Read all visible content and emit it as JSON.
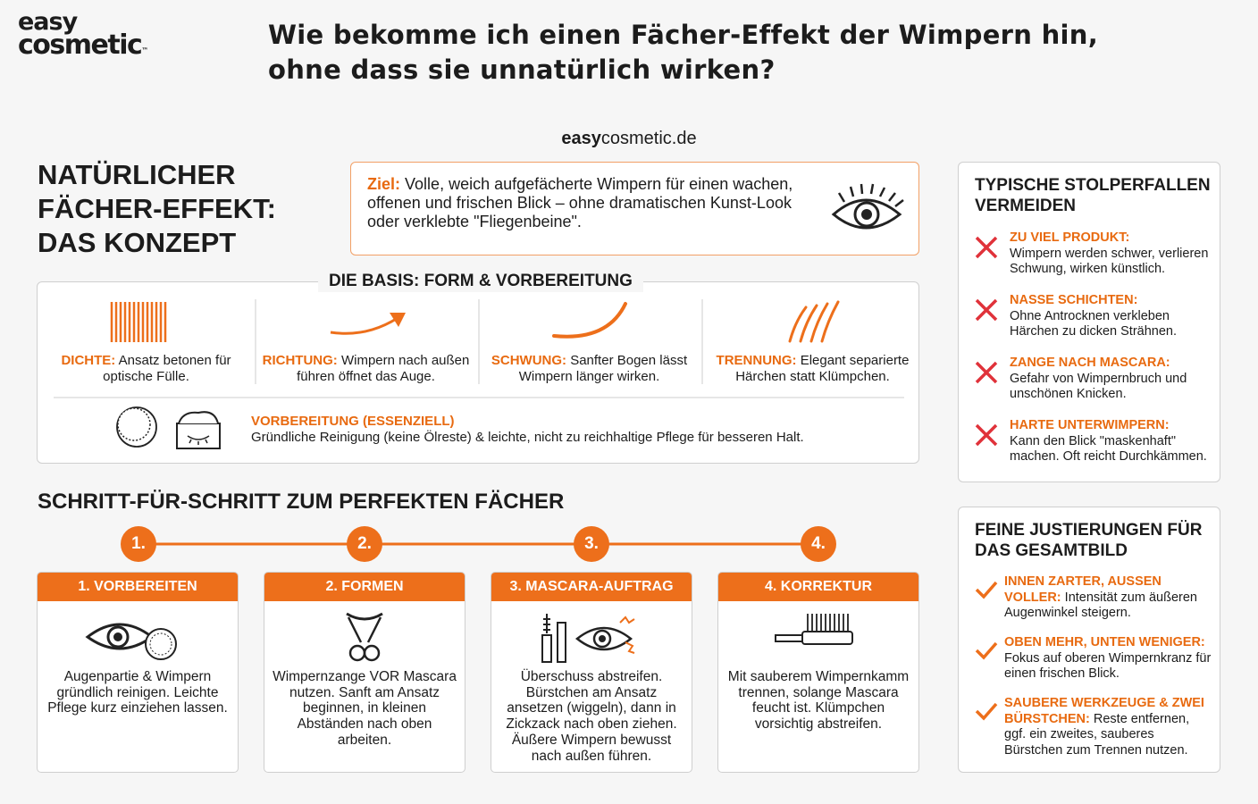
{
  "logo": {
    "line1": "easy",
    "line2": "cosmetic",
    "tm": "™"
  },
  "title": "Wie bekomme ich einen Fächer-Effekt der Wimpern hin, ohne dass sie unnatürlich wirken?",
  "site": {
    "bold": "easy",
    "rest": "cosmetic.de"
  },
  "concept": {
    "heading": "NATÜRLICHER FÄCHER-EFFEKT: DAS KONZEPT",
    "goal": {
      "label": "Ziel:",
      "text": "Volle, weich aufgefächerte Wimpern für einen wachen, offenen und frischen Blick – ohne dramatischen Kunst-Look oder verklebte \"Fliegenbeine\"."
    }
  },
  "basis": {
    "title": "DIE BASIS: FORM & VORBEREITUNG",
    "items": [
      {
        "label": "DICHTE:",
        "text": "Ansatz betonen für optische Fülle."
      },
      {
        "label": "RICHTUNG:",
        "text": "Wimpern nach außen führen öffnet das Auge."
      },
      {
        "label": "SCHWUNG:",
        "text": "Sanfter Bogen lässt Wimpern länger wirken."
      },
      {
        "label": "TRENNUNG:",
        "text": "Elegant separierte Härchen statt Klümpchen."
      }
    ],
    "prep": {
      "label": "VORBEREITUNG (ESSENZIELL)",
      "text": "Gründliche Reinigung (keine Ölreste) & leichte, nicht zu reichhaltige Pflege für besseren Halt."
    }
  },
  "steps": {
    "title": "SCHRITT-FÜR-SCHRITT ZUM PERFEKTEN FÄCHER",
    "items": [
      {
        "number": "1.",
        "title": "1. VORBEREITEN",
        "text": "Augenpartie & Wimpern gründlich reinigen. Leichte Pflege kurz einziehen lassen."
      },
      {
        "number": "2.",
        "title": "2. FORMEN",
        "text": "Wimpernzange VOR Mascara nutzen. Sanft am Ansatz beginnen, in kleinen Abständen nach oben arbeiten."
      },
      {
        "number": "3.",
        "title": "3. MASCARA-AUFTRAG",
        "text": "Überschuss abstreifen. Bürstchen am Ansatz ansetzen (wiggeln), dann in Zickzack nach oben ziehen. Äußere Wimpern bewusst nach außen führen."
      },
      {
        "number": "4.",
        "title": "4. KORREKTUR",
        "text": "Mit sauberem Wimpernkamm trennen, solange Mascara feucht ist. Klümpchen vorsichtig abstreifen."
      }
    ]
  },
  "pitfalls": {
    "title": "TYPISCHE STOLPERFALLEN VERMEIDEN",
    "items": [
      {
        "label": "ZU VIEL PRODUKT:",
        "text": "Wimpern werden schwer, verlieren Schwung, wirken künstlich."
      },
      {
        "label": "NASSE SCHICHTEN:",
        "text": "Ohne Antrocknen verkleben Härchen zu dicken Strähnen."
      },
      {
        "label": "ZANGE NACH MASCARA:",
        "text": "Gefahr von Wimpernbruch und unschönen Knicken."
      },
      {
        "label": "HARTE UNTERWIMPERN:",
        "text": "Kann den Blick \"maskenhaft\" machen. Oft reicht Durchkämmen."
      }
    ]
  },
  "tweaks": {
    "title": "FEINE JUSTIERUNGEN FÜR DAS GESAMTBILD",
    "items": [
      {
        "label": "INNEN ZARTER, AUSSEN VOLLER:",
        "text": "Intensität zum äußeren Augenwinkel steigern."
      },
      {
        "label": "OBEN MEHR, UNTEN WENIGER:",
        "text": "Fokus auf oberen Wimpernkranz für einen frischen Blick."
      },
      {
        "label": "SAUBERE WERKZEUGE & ZWEI BÜRSTCHEN:",
        "text": "Reste entfernen, ggf. ein zweites, sauberes Bürstchen zum Trennen nutzen."
      }
    ]
  }
}
